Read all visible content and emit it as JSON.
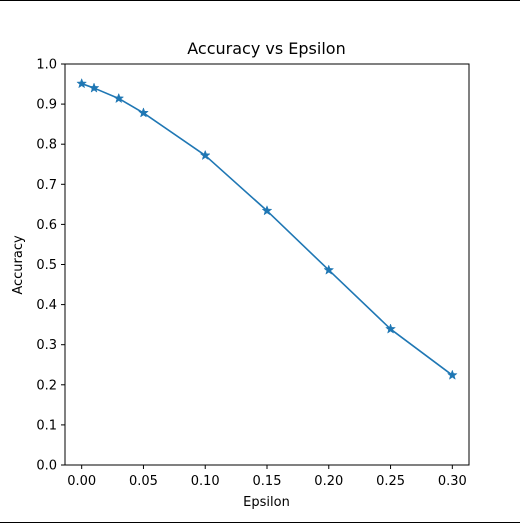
{
  "chart_data": {
    "type": "line",
    "title": "Accuracy vs Epsilon",
    "xlabel": "Epsilon",
    "ylabel": "Accuracy",
    "xlim": [
      -0.0135,
      0.3135
    ],
    "ylim": [
      0.0,
      1.0
    ],
    "x_ticks": [
      0.0,
      0.05,
      0.1,
      0.15,
      0.2,
      0.25,
      0.3
    ],
    "x_tick_labels": [
      "0.00",
      "0.05",
      "0.10",
      "0.15",
      "0.20",
      "0.25",
      "0.30"
    ],
    "y_ticks": [
      0.0,
      0.1,
      0.2,
      0.3,
      0.4,
      0.5,
      0.6,
      0.7,
      0.8,
      0.9,
      1.0
    ],
    "y_tick_labels": [
      "0.0",
      "0.1",
      "0.2",
      "0.3",
      "0.4",
      "0.5",
      "0.6",
      "0.7",
      "0.8",
      "0.9",
      "1.0"
    ],
    "grid": false,
    "marker": "star",
    "series": [
      {
        "x": [
          0.0,
          0.01,
          0.03,
          0.05,
          0.1,
          0.15,
          0.2,
          0.25,
          0.3
        ],
        "y": [
          0.951,
          0.94,
          0.914,
          0.878,
          0.772,
          0.634,
          0.486,
          0.339,
          0.224
        ],
        "color": "#1f77b4"
      }
    ]
  }
}
